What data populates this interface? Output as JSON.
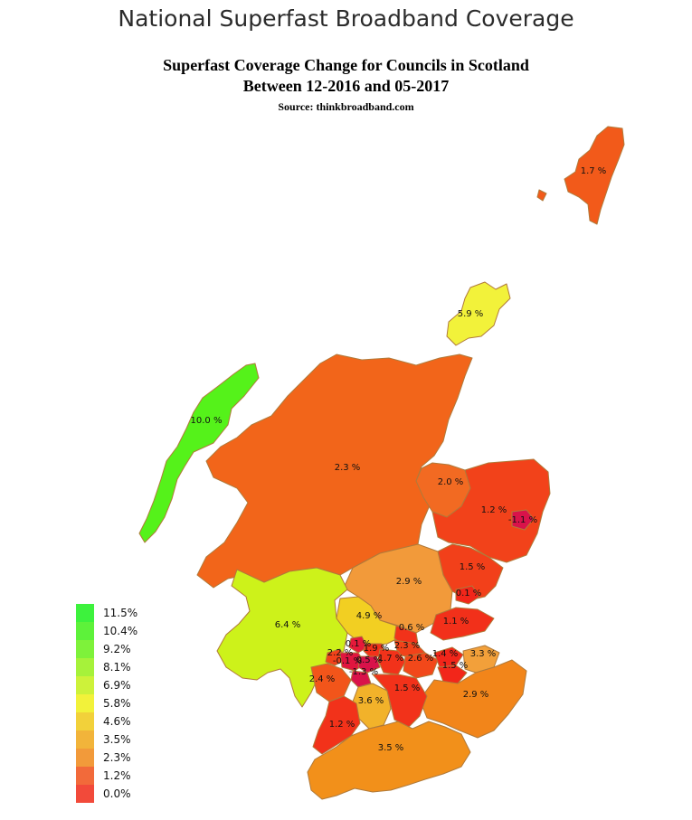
{
  "header": {
    "title": "National Superfast Broadband Coverage",
    "subtitle_line1": "Superfast Coverage Change for Councils in Scotland",
    "subtitle_line2": "Between 12-2016 and 05-2017",
    "source": "Source: thinkbroadband.com"
  },
  "legend": [
    {
      "label": "11.5%",
      "color": "#3df23d"
    },
    {
      "label": "10.4%",
      "color": "#5df23a"
    },
    {
      "label": "9.2%",
      "color": "#7ef23a"
    },
    {
      "label": "8.1%",
      "color": "#a6f23a"
    },
    {
      "label": "6.9%",
      "color": "#cdf23a"
    },
    {
      "label": "5.8%",
      "color": "#f2f23a"
    },
    {
      "label": "4.6%",
      "color": "#f2d13a"
    },
    {
      "label": "3.5%",
      "color": "#f2b43a"
    },
    {
      "label": "2.3%",
      "color": "#f29a3a"
    },
    {
      "label": "1.2%",
      "color": "#f26a3a"
    },
    {
      "label": "0.0%",
      "color": "#f24a3a"
    }
  ],
  "regions": [
    {
      "id": "shetland",
      "value": 1.7,
      "label": "1.7 %",
      "color": "#f25a1a"
    },
    {
      "id": "orkney",
      "value": 5.9,
      "label": "5.9 %",
      "color": "#f2f23a"
    },
    {
      "id": "eilean-siar",
      "value": 10.0,
      "label": "10.0 %",
      "color": "#55f21a"
    },
    {
      "id": "highland",
      "value": 2.3,
      "label": "2.3 %",
      "color": "#f2651a"
    },
    {
      "id": "moray",
      "value": 2.0,
      "label": "2.0 %",
      "color": "#f26a22"
    },
    {
      "id": "aberdeenshire",
      "value": 1.2,
      "label": "1.2 %",
      "color": "#f2421a"
    },
    {
      "id": "aberdeen-city",
      "value": -1.1,
      "label": "-1.1 %",
      "color": "#d9124a"
    },
    {
      "id": "angus",
      "value": 1.5,
      "label": "1.5 %",
      "color": "#f2401a"
    },
    {
      "id": "perth-kinross",
      "value": 2.9,
      "label": "2.9 %",
      "color": "#f29a3a"
    },
    {
      "id": "dundee",
      "value": 0.1,
      "label": "0.1 %",
      "color": "#f2261a"
    },
    {
      "id": "fife",
      "value": 1.1,
      "label": "1.1 %",
      "color": "#f2301a"
    },
    {
      "id": "argyll-bute",
      "value": 6.4,
      "label": "6.4 %",
      "color": "#cdf21a"
    },
    {
      "id": "stirling",
      "value": 4.9,
      "label": "4.9 %",
      "color": "#f2cf22"
    },
    {
      "id": "clackmannanshire",
      "value": 0.6,
      "label": "0.6 %",
      "color": "#f2321a"
    },
    {
      "id": "falkirk",
      "value": 2.3,
      "label": "2.3 %",
      "color": "#f2421a"
    },
    {
      "id": "west-lothian",
      "value": 2.6,
      "label": "2.6 %",
      "color": "#f2481a"
    },
    {
      "id": "edinburgh",
      "value": 1.4,
      "label": "1.4 %",
      "color": "#f2261a"
    },
    {
      "id": "midlothian",
      "value": 1.5,
      "label": "1.5 %",
      "color": "#f2261a"
    },
    {
      "id": "east-lothian",
      "value": 3.3,
      "label": "3.3 %",
      "color": "#f2a03a"
    },
    {
      "id": "scottish-borders",
      "value": 2.9,
      "label": "2.9 %",
      "color": "#f2851a"
    },
    {
      "id": "inverclyde",
      "value": 2.2,
      "label": "2.2 %",
      "color": "#f2421a"
    },
    {
      "id": "west-dunbartonshire",
      "value": 0.1,
      "label": "0.1 %",
      "color": "#e61a3a"
    },
    {
      "id": "renfrewshire",
      "value": -0.1,
      "label": "-0.1 %",
      "color": "#e0153f"
    },
    {
      "id": "east-dunbartonshire",
      "value": 1.9,
      "label": "1.9 %",
      "color": "#f2321a"
    },
    {
      "id": "glasgow",
      "value": 0.5,
      "label": "0.5 %",
      "color": "#d9124a"
    },
    {
      "id": "north-lanarkshire",
      "value": 1.7,
      "label": "1.7 %",
      "color": "#f2321a"
    },
    {
      "id": "east-renfrewshire",
      "value": -1.3,
      "label": "-1.3 %",
      "color": "#d9124a"
    },
    {
      "id": "north-ayrshire",
      "value": 2.4,
      "label": "2.4 %",
      "color": "#f2551a"
    },
    {
      "id": "east-ayrshire",
      "value": 3.6,
      "label": "3.6 %",
      "color": "#f2b22a"
    },
    {
      "id": "south-lanarkshire",
      "value": 1.5,
      "label": "1.5 %",
      "color": "#f2321a"
    },
    {
      "id": "south-ayrshire",
      "value": 1.2,
      "label": "1.2 %",
      "color": "#f2321a"
    },
    {
      "id": "dumfries-galloway",
      "value": 3.5,
      "label": "3.5 %",
      "color": "#f2901a"
    }
  ]
}
